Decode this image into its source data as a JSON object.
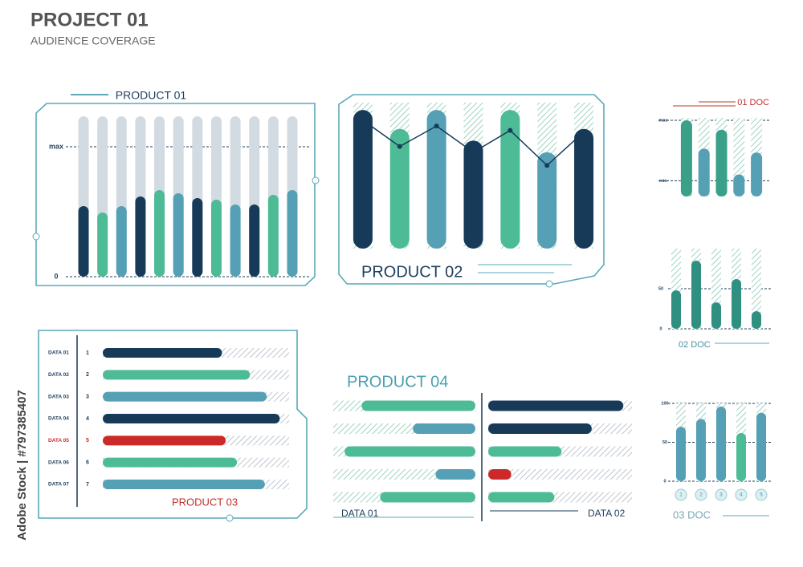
{
  "header": {
    "title": "PROJECT 01",
    "subtitle": "AUDIENCE COVERAGE",
    "watermark": "Adobe Stock | #797385407"
  },
  "chart_data": [
    {
      "type": "bar",
      "title": "PRODUCT 01",
      "values": [
        44,
        40,
        44,
        50,
        54,
        52,
        49,
        48,
        45,
        45,
        51,
        54
      ],
      "colors": [
        "#173a59",
        "#4cbb96",
        "#55a0b5",
        "#173a59",
        "#4cbb96",
        "#55a0b5",
        "#173a59",
        "#4cbb96",
        "#55a0b5",
        "#173a59",
        "#4cbb96",
        "#55a0b5"
      ],
      "ylim": [
        0,
        100
      ],
      "yticks": [
        0,
        {
          "value": 81,
          "label": "max"
        }
      ],
      "grid": true
    },
    {
      "type": "bar",
      "title": "PRODUCT 02",
      "ylim": [
        0,
        100
      ],
      "series": [
        {
          "type": "bar",
          "values": [
            95,
            82,
            95,
            74,
            95,
            66,
            82
          ],
          "colors": [
            "#173a59",
            "#4cbb96",
            "#55a0b5",
            "#173a59",
            "#4cbb96",
            "#55a0b5",
            "#173a59"
          ]
        },
        {
          "type": "line",
          "values": [
            88,
            70,
            84,
            66,
            81,
            57,
            80
          ],
          "color": "#173a59"
        }
      ]
    },
    {
      "type": "bar",
      "title": "01 DOC",
      "values": [
        97,
        61,
        85,
        28,
        56
      ],
      "colors": [
        "#3aa088",
        "#55a0b5",
        "#3aa088",
        "#55a0b5",
        "#55a0b5"
      ],
      "ylim": [
        0,
        100
      ],
      "yticks": [
        {
          "value": 20,
          "label": "min"
        },
        {
          "value": 97,
          "label": "max"
        }
      ],
      "grid": true
    },
    {
      "type": "bar",
      "title": "02 DOC",
      "values": [
        48,
        85,
        33,
        62,
        22
      ],
      "colors": [
        "#2f8f80",
        "#2f8f80",
        "#2f8f80",
        "#2f8f80",
        "#2f8f80"
      ],
      "ylim": [
        0,
        100
      ],
      "yticks": [
        0,
        50
      ],
      "grid": true
    },
    {
      "type": "bar",
      "title": "03 DOC",
      "categories": [
        "1",
        "2",
        "3",
        "4",
        "5"
      ],
      "values": [
        70,
        80,
        96,
        62,
        88
      ],
      "colors": [
        "#55a0b5",
        "#55a0b5",
        "#55a0b5",
        "#4cbb96",
        "#55a0b5"
      ],
      "ylim": [
        0,
        100
      ],
      "yticks": [
        0,
        50,
        100
      ],
      "grid": true
    },
    {
      "type": "bar",
      "orientation": "horizontal",
      "title": "PRODUCT 03",
      "categories": [
        "DATA 01",
        "DATA 02",
        "DATA 03",
        "DATA 04",
        "DATA 05",
        "DATA 06",
        "DATA 07"
      ],
      "ranks": [
        1,
        2,
        3,
        4,
        5,
        6,
        7
      ],
      "values": [
        64,
        79,
        88,
        95,
        66,
        72,
        87
      ],
      "colors": [
        "#173a59",
        "#4cbb96",
        "#55a0b5",
        "#173a59",
        "#cc2a2a",
        "#4cbb96",
        "#55a0b5"
      ],
      "xlim": [
        0,
        100
      ]
    },
    {
      "type": "bar",
      "orientation": "horizontal",
      "title": "PRODUCT 04",
      "xlim": [
        0,
        100
      ],
      "series": [
        {
          "name": "DATA 01",
          "values": [
            80,
            44,
            92,
            28,
            67
          ],
          "colors": [
            "#4cbb96",
            "#55a0b5",
            "#4cbb96",
            "#55a0b5",
            "#4cbb96"
          ]
        },
        {
          "name": "DATA 02",
          "values": [
            94,
            72,
            51,
            16,
            46
          ],
          "colors": [
            "#173a59",
            "#173a59",
            "#4cbb96",
            "#cc2a2a",
            "#4cbb96"
          ]
        }
      ]
    }
  ]
}
